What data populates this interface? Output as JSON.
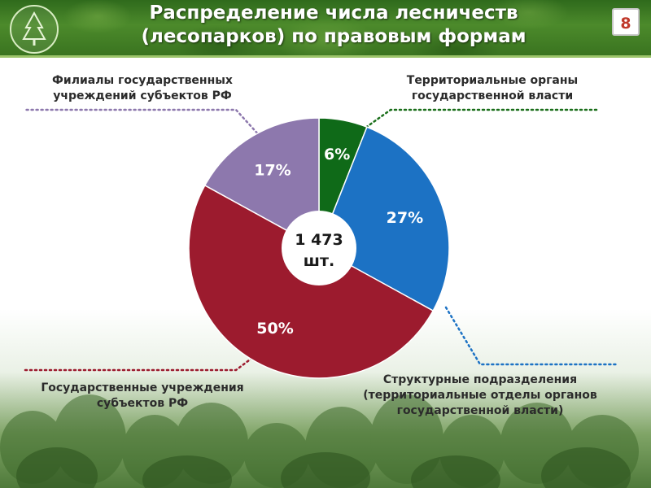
{
  "header": {
    "title_line1": "Распределение числа лесничеств",
    "title_line2": "(лесопарков) по правовым формам",
    "page_number": "8"
  },
  "chart_data": {
    "type": "pie",
    "variant": "donut",
    "title": "Распределение числа лесничеств (лесопарков) по правовым формам",
    "center_label": {
      "line1": "1 473",
      "line2": "шт."
    },
    "slices": [
      {
        "label": "Территориальные органы государственной власти",
        "value": 6,
        "display": "6%",
        "color": "#0f6a18"
      },
      {
        "label": "Структурные подразделения (территориальные отделы органов государственной власти)",
        "value": 27,
        "display": "27%",
        "color": "#1c72c4"
      },
      {
        "label": "Государственные учреждения субъектов РФ",
        "value": 50,
        "display": "50%",
        "color": "#9c1b2e"
      },
      {
        "label": "Филиалы государственных учреждений субъектов РФ",
        "value": 17,
        "display": "17%",
        "color": "#8d78ad"
      }
    ],
    "legend_labels": {
      "top_right": [
        "Территориальные органы",
        "государственной власти"
      ],
      "bottom_right": [
        "Структурные подразделения",
        "(территориальные отделы органов",
        "государственной власти)"
      ],
      "bottom_left": [
        "Государственные учреждения",
        "субъектов РФ"
      ],
      "top_left": [
        "Филиалы государственных",
        "учреждений субъектов РФ"
      ]
    }
  }
}
